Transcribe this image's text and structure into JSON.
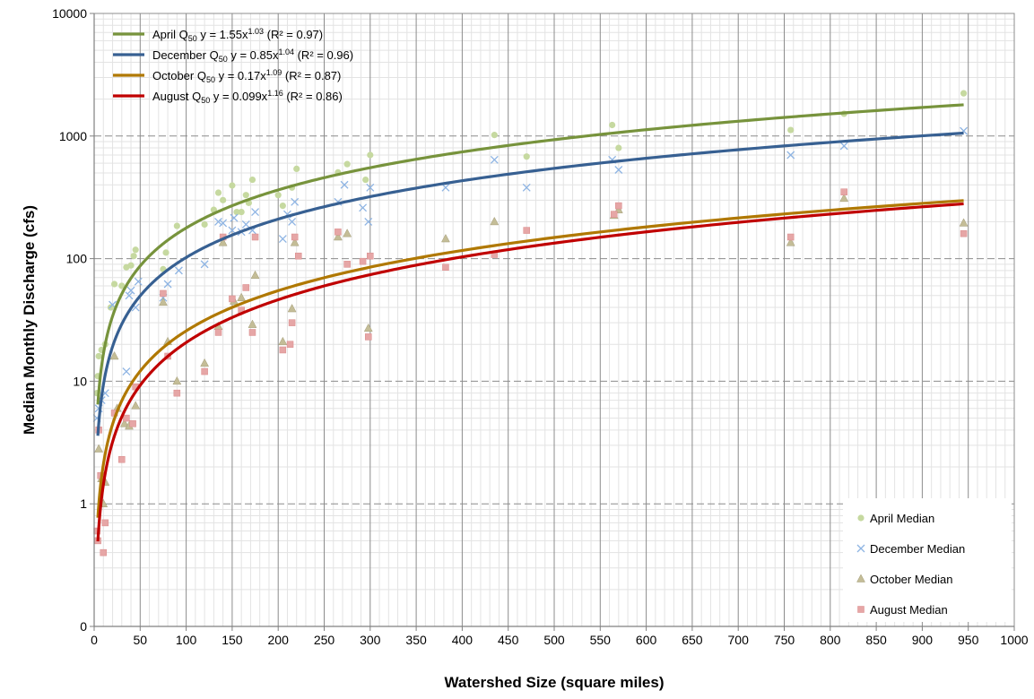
{
  "chart_data": {
    "type": "scatter",
    "title": "",
    "xlabel": "Watershed Size (square miles)",
    "ylabel": "Median Monthly Discharge (cfs)",
    "xlim": [
      0,
      1000
    ],
    "x_ticks": [
      "0",
      "50",
      "100",
      "150",
      "200",
      "250",
      "300",
      "350",
      "400",
      "450",
      "500",
      "550",
      "600",
      "650",
      "700",
      "750",
      "800",
      "850",
      "900",
      "950",
      "1000"
    ],
    "y_scale": "log",
    "y_ticks": [
      {
        "value": 0.1,
        "label": "0"
      },
      {
        "value": 1,
        "label": "1"
      },
      {
        "value": 10,
        "label": "10"
      },
      {
        "value": 100,
        "label": "100"
      },
      {
        "value": 1000,
        "label": "1000"
      },
      {
        "value": 10000,
        "label": "10000"
      }
    ],
    "ylim": [
      0.1,
      10000
    ],
    "grid": true,
    "trendlines": [
      {
        "name": "April",
        "legend": {
          "prefix": "April Q",
          "sub": "50",
          "eq": "  y = 1.55x",
          "exp": "1.03",
          "r2": "   (R² = 0.97)"
        },
        "a": 1.55,
        "b": 1.03,
        "color": "#77933C",
        "x_range": [
          4,
          945
        ]
      },
      {
        "name": "December",
        "legend": {
          "prefix": "December Q",
          "sub": "50",
          "eq": "  y = 0.85x",
          "exp": "1.04",
          "r2": "   (R² = 0.96)"
        },
        "a": 0.85,
        "b": 1.04,
        "color": "#376092",
        "x_range": [
          4,
          945
        ]
      },
      {
        "name": "October",
        "legend": {
          "prefix": "October Q",
          "sub": "50",
          "eq": "  y = 0.17x",
          "exp": "1.09",
          "r2": "   (R² = 0.87)"
        },
        "a": 0.17,
        "b": 1.09,
        "color": "#B07800",
        "x_range": [
          4,
          945
        ]
      },
      {
        "name": "August",
        "legend": {
          "prefix": "August Q",
          "sub": "50",
          "eq": "  y = 0.099x",
          "exp": "1.16",
          "r2": "   (R² = 0.86)"
        },
        "a": 0.099,
        "b": 1.16,
        "color": "#C00000",
        "x_range": [
          4,
          945
        ]
      }
    ],
    "series": [
      {
        "name": "April Median",
        "marker": "circle",
        "color": "#C6D9A0",
        "points": [
          [
            3,
            8
          ],
          [
            4,
            11
          ],
          [
            5,
            16
          ],
          [
            8,
            18
          ],
          [
            12,
            20
          ],
          [
            18,
            40
          ],
          [
            22,
            62
          ],
          [
            30,
            60
          ],
          [
            35,
            85
          ],
          [
            40,
            88
          ],
          [
            43,
            105
          ],
          [
            45,
            118
          ],
          [
            75,
            82
          ],
          [
            78,
            112
          ],
          [
            90,
            185
          ],
          [
            120,
            190
          ],
          [
            130,
            250
          ],
          [
            135,
            345
          ],
          [
            140,
            300
          ],
          [
            150,
            395
          ],
          [
            155,
            240
          ],
          [
            160,
            240
          ],
          [
            165,
            330
          ],
          [
            168,
            285
          ],
          [
            172,
            440
          ],
          [
            200,
            330
          ],
          [
            205,
            270
          ],
          [
            215,
            380
          ],
          [
            220,
            540
          ],
          [
            265,
            505
          ],
          [
            275,
            590
          ],
          [
            295,
            440
          ],
          [
            300,
            700
          ],
          [
            435,
            1020
          ],
          [
            470,
            680
          ],
          [
            563,
            1230
          ],
          [
            570,
            800
          ],
          [
            757,
            1120
          ],
          [
            815,
            1520
          ],
          [
            945,
            2230
          ]
        ]
      },
      {
        "name": "December Median",
        "marker": "x",
        "color": "#8EB4E3",
        "points": [
          [
            3,
            5
          ],
          [
            5,
            6
          ],
          [
            8,
            7
          ],
          [
            12,
            8
          ],
          [
            20,
            42
          ],
          [
            35,
            12
          ],
          [
            38,
            50
          ],
          [
            40,
            55
          ],
          [
            45,
            40
          ],
          [
            48,
            65
          ],
          [
            75,
            48
          ],
          [
            80,
            62
          ],
          [
            92,
            80
          ],
          [
            120,
            90
          ],
          [
            135,
            200
          ],
          [
            140,
            195
          ],
          [
            150,
            170
          ],
          [
            152,
            215
          ],
          [
            160,
            165
          ],
          [
            165,
            190
          ],
          [
            172,
            170
          ],
          [
            175,
            240
          ],
          [
            205,
            145
          ],
          [
            210,
            230
          ],
          [
            215,
            200
          ],
          [
            218,
            290
          ],
          [
            265,
            290
          ],
          [
            272,
            400
          ],
          [
            292,
            260
          ],
          [
            298,
            200
          ],
          [
            300,
            380
          ],
          [
            382,
            380
          ],
          [
            435,
            640
          ],
          [
            470,
            380
          ],
          [
            563,
            640
          ],
          [
            570,
            530
          ],
          [
            757,
            700
          ],
          [
            815,
            830
          ],
          [
            945,
            1100
          ]
        ]
      },
      {
        "name": "October Median",
        "marker": "triangle",
        "color": "#C4BD97",
        "points": [
          [
            5,
            2.8
          ],
          [
            8,
            1.6
          ],
          [
            10,
            1.0
          ],
          [
            12,
            1.5
          ],
          [
            22,
            16
          ],
          [
            25,
            6
          ],
          [
            33,
            4.5
          ],
          [
            38,
            4.3
          ],
          [
            45,
            6.3
          ],
          [
            75,
            44
          ],
          [
            80,
            21
          ],
          [
            90,
            10
          ],
          [
            120,
            14
          ],
          [
            135,
            28
          ],
          [
            140,
            135
          ],
          [
            152,
            45
          ],
          [
            160,
            48
          ],
          [
            172,
            29
          ],
          [
            175,
            73
          ],
          [
            205,
            21
          ],
          [
            215,
            39
          ],
          [
            218,
            135
          ],
          [
            265,
            150
          ],
          [
            275,
            160
          ],
          [
            298,
            27
          ],
          [
            382,
            145
          ],
          [
            435,
            200
          ],
          [
            565,
            225
          ],
          [
            570,
            250
          ],
          [
            757,
            135
          ],
          [
            815,
            310
          ],
          [
            945,
            195
          ]
        ]
      },
      {
        "name": "August Median",
        "marker": "square",
        "color": "#E6A6A6",
        "points": [
          [
            3,
            0.6
          ],
          [
            4,
            0.5
          ],
          [
            5,
            4
          ],
          [
            7,
            1.7
          ],
          [
            10,
            0.4
          ],
          [
            12,
            0.7
          ],
          [
            22,
            5.5
          ],
          [
            30,
            2.3
          ],
          [
            35,
            5
          ],
          [
            42,
            4.5
          ],
          [
            45,
            9
          ],
          [
            75,
            52
          ],
          [
            80,
            16
          ],
          [
            90,
            8
          ],
          [
            120,
            12
          ],
          [
            135,
            25
          ],
          [
            140,
            150
          ],
          [
            150,
            47
          ],
          [
            160,
            38
          ],
          [
            165,
            58
          ],
          [
            172,
            25
          ],
          [
            175,
            150
          ],
          [
            205,
            18
          ],
          [
            213,
            20
          ],
          [
            215,
            30
          ],
          [
            218,
            150
          ],
          [
            222,
            105
          ],
          [
            265,
            165
          ],
          [
            275,
            90
          ],
          [
            292,
            95
          ],
          [
            298,
            23
          ],
          [
            300,
            105
          ],
          [
            382,
            85
          ],
          [
            435,
            108
          ],
          [
            470,
            170
          ],
          [
            565,
            230
          ],
          [
            570,
            270
          ],
          [
            757,
            150
          ],
          [
            815,
            350
          ],
          [
            945,
            160
          ]
        ]
      }
    ]
  }
}
